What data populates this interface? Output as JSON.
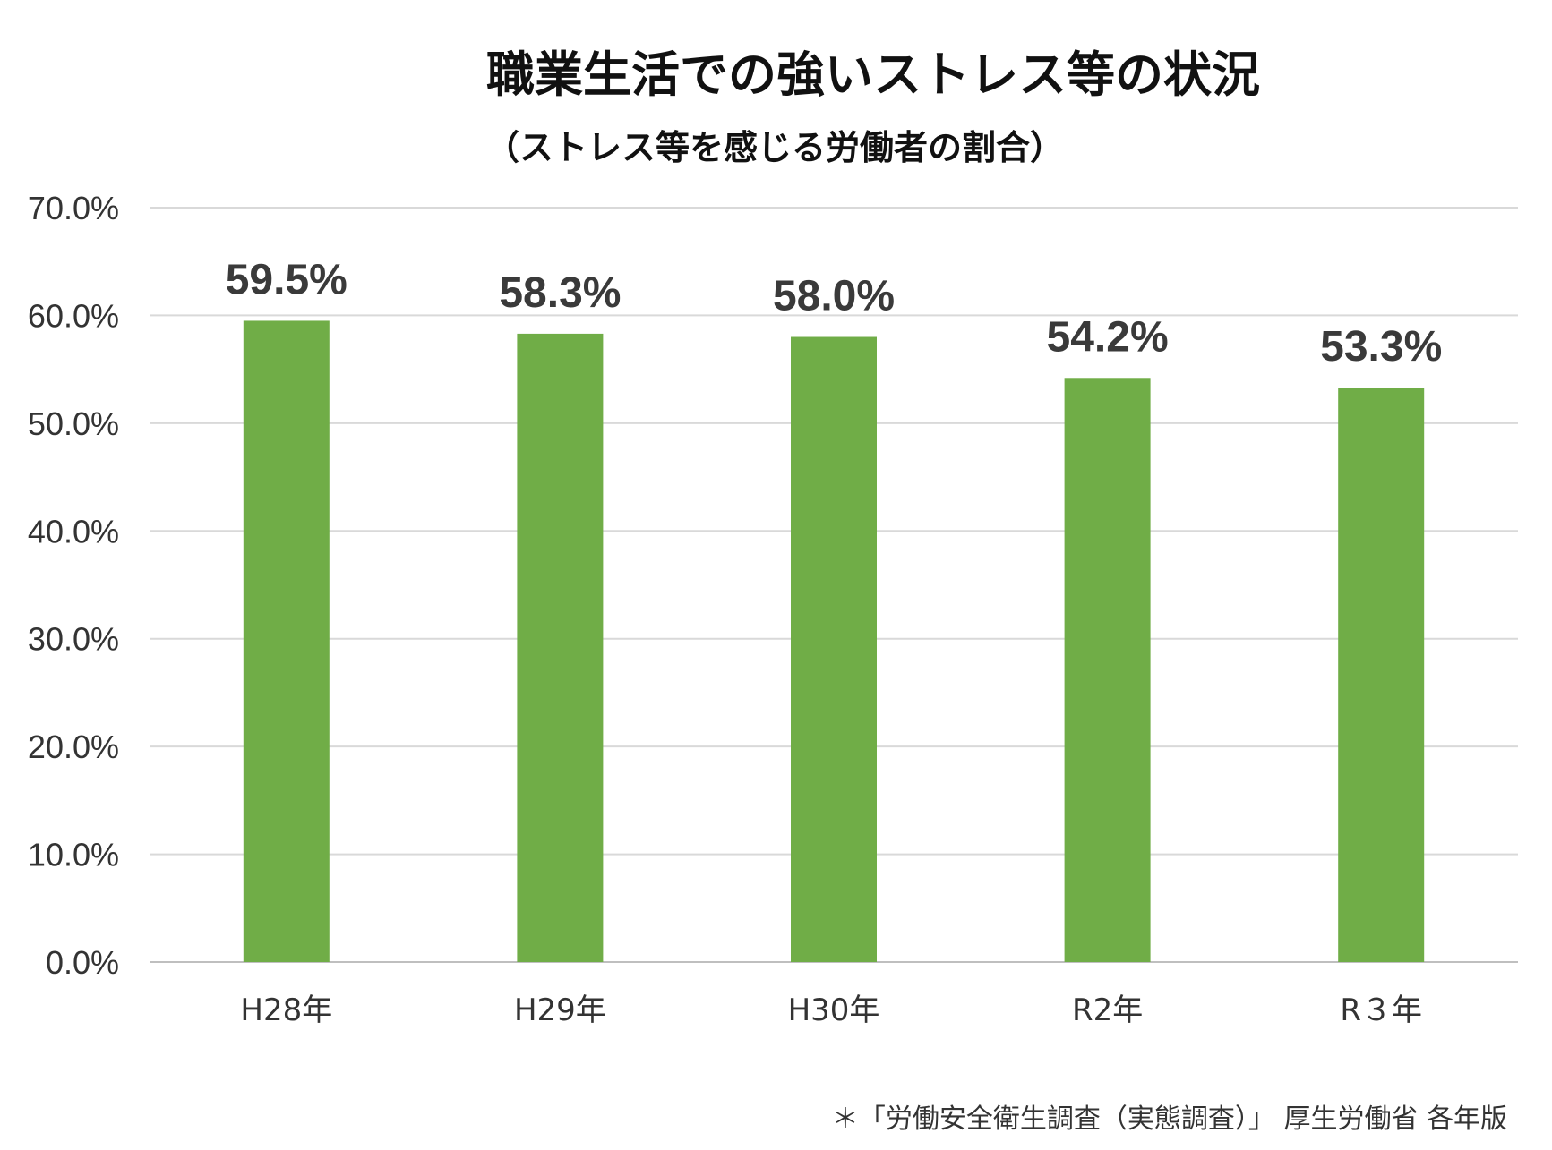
{
  "chart_data": {
    "type": "bar",
    "title": "職業生活での強いストレス等の状況",
    "subtitle": "（ストレス等を感じる労働者の割合）",
    "categories": [
      "H28年",
      "H29年",
      "H30年",
      "R2年",
      "R３年"
    ],
    "values": [
      59.5,
      58.3,
      58.0,
      54.2,
      53.3
    ],
    "data_labels": [
      "59.5%",
      "58.3%",
      "58.0%",
      "54.2%",
      "53.3%"
    ],
    "ylim": [
      0,
      70
    ],
    "yticks": [
      0,
      10,
      20,
      30,
      40,
      50,
      60,
      70
    ],
    "ytick_labels": [
      "0.0%",
      "10.0%",
      "20.0%",
      "30.0%",
      "40.0%",
      "50.0%",
      "60.0%",
      "70.0%"
    ],
    "xlabel": "",
    "ylabel": "",
    "grid": true,
    "legend": "none",
    "bar_color": "#70ad47",
    "source": "＊「労働安全衛生調査（実態調査）」 厚生労働省 各年版"
  }
}
